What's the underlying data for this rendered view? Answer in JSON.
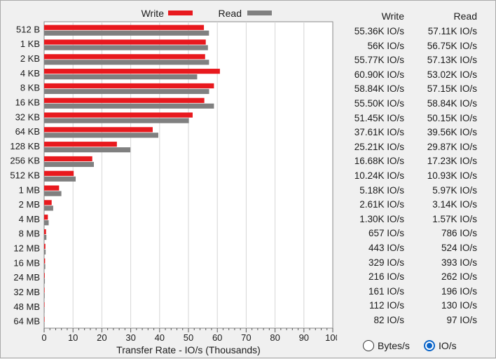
{
  "chart_data": {
    "type": "bar",
    "orientation": "horizontal",
    "categories": [
      "512 B",
      "1 KB",
      "2 KB",
      "4 KB",
      "8 KB",
      "16 KB",
      "32 KB",
      "64 KB",
      "128 KB",
      "256 KB",
      "512 KB",
      "1 MB",
      "2 MB",
      "4 MB",
      "8 MB",
      "12 MB",
      "16 MB",
      "24 MB",
      "32 MB",
      "48 MB",
      "64 MB"
    ],
    "series": [
      {
        "name": "Write",
        "color": "#e8191e",
        "values": [
          55.36,
          56.0,
          55.77,
          60.9,
          58.84,
          55.5,
          51.45,
          37.61,
          25.21,
          16.68,
          10.24,
          5.18,
          2.61,
          1.3,
          0.657,
          0.443,
          0.329,
          0.216,
          0.161,
          0.112,
          0.082
        ]
      },
      {
        "name": "Read",
        "color": "#808080",
        "values": [
          57.11,
          56.75,
          57.13,
          53.02,
          57.15,
          58.84,
          50.15,
          39.56,
          29.87,
          17.23,
          10.93,
          5.97,
          3.14,
          1.57,
          0.786,
          0.524,
          0.393,
          0.262,
          0.196,
          0.13,
          0.097
        ]
      }
    ],
    "xlabel": "Transfer Rate - IO/s (Thousands)",
    "ylabel": "",
    "xlim": [
      0,
      100
    ],
    "xticks": [
      "0",
      "10",
      "20",
      "30",
      "40",
      "50",
      "60",
      "70",
      "80",
      "90",
      "100"
    ],
    "grid": "vertical",
    "legend": {
      "position": "top",
      "items": [
        "Write",
        "Read"
      ]
    }
  },
  "results": {
    "write_header": "Write",
    "read_header": "Read",
    "rows": [
      {
        "write": "55.36K IO/s",
        "read": "57.11K IO/s"
      },
      {
        "write": "56K IO/s",
        "read": "56.75K IO/s"
      },
      {
        "write": "55.77K IO/s",
        "read": "57.13K IO/s"
      },
      {
        "write": "60.90K IO/s",
        "read": "53.02K IO/s"
      },
      {
        "write": "58.84K IO/s",
        "read": "57.15K IO/s"
      },
      {
        "write": "55.50K IO/s",
        "read": "58.84K IO/s"
      },
      {
        "write": "51.45K IO/s",
        "read": "50.15K IO/s"
      },
      {
        "write": "37.61K IO/s",
        "read": "39.56K IO/s"
      },
      {
        "write": "25.21K IO/s",
        "read": "29.87K IO/s"
      },
      {
        "write": "16.68K IO/s",
        "read": "17.23K IO/s"
      },
      {
        "write": "10.24K IO/s",
        "read": "10.93K IO/s"
      },
      {
        "write": "5.18K IO/s",
        "read": "5.97K IO/s"
      },
      {
        "write": "2.61K IO/s",
        "read": "3.14K IO/s"
      },
      {
        "write": "1.30K IO/s",
        "read": "1.57K IO/s"
      },
      {
        "write": "657 IO/s",
        "read": "786 IO/s"
      },
      {
        "write": "443 IO/s",
        "read": "524 IO/s"
      },
      {
        "write": "329 IO/s",
        "read": "393 IO/s"
      },
      {
        "write": "216 IO/s",
        "read": "262 IO/s"
      },
      {
        "write": "161 IO/s",
        "read": "196 IO/s"
      },
      {
        "write": "112 IO/s",
        "read": "130 IO/s"
      },
      {
        "write": "82 IO/s",
        "read": "97 IO/s"
      }
    ]
  },
  "unit_selector": {
    "options": [
      {
        "label": "Bytes/s",
        "selected": false
      },
      {
        "label": "IO/s",
        "selected": true
      }
    ]
  }
}
